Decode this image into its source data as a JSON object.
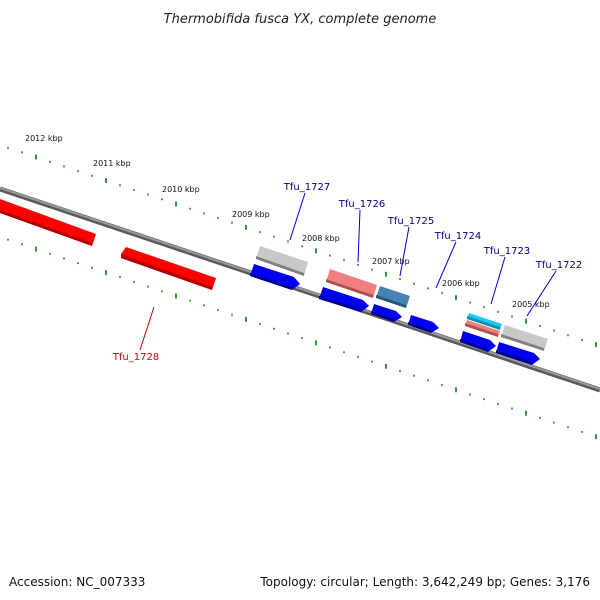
{
  "title": "Thermobifida fusca YX, complete genome",
  "footer": {
    "accession": "Accession: NC_007333",
    "topology": "Topology: circular; Length: 3,642,249 bp; Genes: 3,176"
  },
  "colors": {
    "background": "#ffffff",
    "backbone": "#808080",
    "tick": "#008000",
    "forward_label": "#00008b",
    "reverse_label": "#cc0000",
    "cds_blue": "#0000ee",
    "gene_red": "#ff0000",
    "gene_pink": "#f08080",
    "gene_grey": "#c0c0c0",
    "gene_steel": "#4682b4",
    "gene_cyan": "#1ec8f0"
  },
  "scale_labels": [
    {
      "text": "2012 kbp",
      "kbp": 2012
    },
    {
      "text": "2011 kbp",
      "kbp": 2011
    },
    {
      "text": "2010 kbp",
      "kbp": 2010
    },
    {
      "text": "2009 kbp",
      "kbp": 2009
    },
    {
      "text": "2008 kbp",
      "kbp": 2008
    },
    {
      "text": "2007 kbp",
      "kbp": 2007
    },
    {
      "text": "2006 kbp",
      "kbp": 2006
    },
    {
      "text": "2005 kbp",
      "kbp": 2005
    }
  ],
  "gene_labels": [
    {
      "text": "Tfu_1727",
      "strand": "forward"
    },
    {
      "text": "Tfu_1726",
      "strand": "forward"
    },
    {
      "text": "Tfu_1725",
      "strand": "forward"
    },
    {
      "text": "Tfu_1724",
      "strand": "forward"
    },
    {
      "text": "Tfu_1723",
      "strand": "forward"
    },
    {
      "text": "Tfu_1722",
      "strand": "forward"
    },
    {
      "text": "Tfu_1728",
      "strand": "reverse"
    }
  ]
}
